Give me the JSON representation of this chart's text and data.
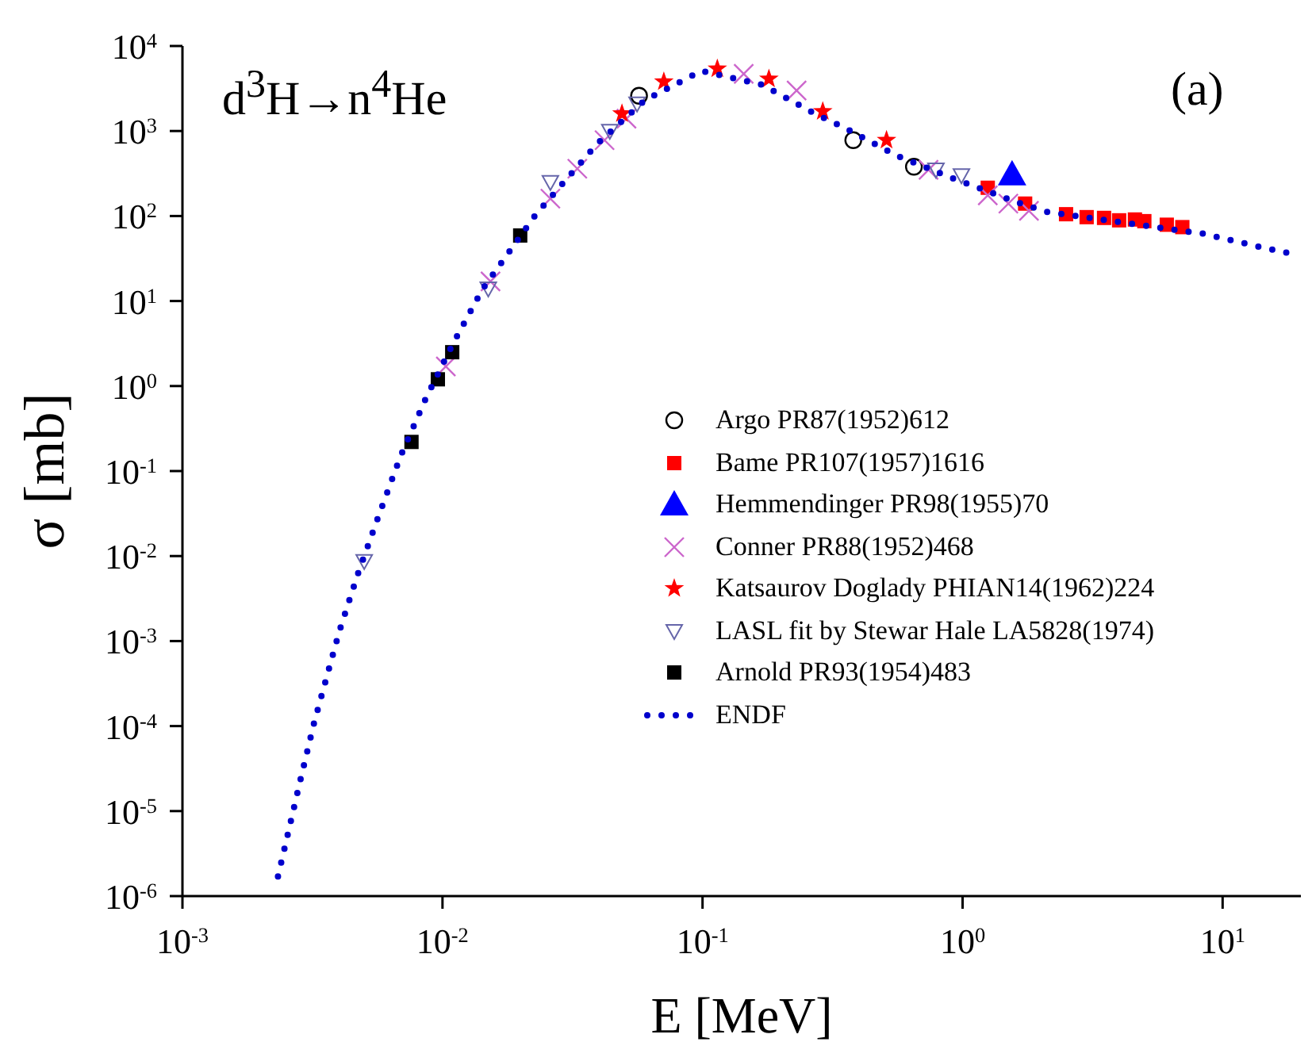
{
  "chart_data": {
    "type": "scatter",
    "xlabel": "E [MeV]",
    "ylabel": "σ [mb]",
    "log": "xy",
    "xlim": [
      0.001,
      20
    ],
    "ylim": [
      1e-06,
      10000
    ],
    "xticks": [
      {
        "value": 0.001,
        "label": "10$^{-3}$"
      },
      {
        "value": 0.01,
        "label": "10$^{-2}$"
      },
      {
        "value": 0.1,
        "label": "10$^{-1}$"
      },
      {
        "value": 1,
        "label": "10$^{0}$"
      },
      {
        "value": 10,
        "label": "10$^{1}$"
      }
    ],
    "yticks": [
      {
        "value": 1e-06,
        "label": "10$^{-6}$"
      },
      {
        "value": 1e-05,
        "label": "10$^{-5}$"
      },
      {
        "value": 0.0001,
        "label": "10$^{-4}$"
      },
      {
        "value": 0.001,
        "label": "10$^{-3}$"
      },
      {
        "value": 0.01,
        "label": "10$^{-2}$"
      },
      {
        "value": 0.1,
        "label": "10$^{-1}$"
      },
      {
        "value": 1,
        "label": "10$^{0}$"
      },
      {
        "value": 10,
        "label": "10$^{1}$"
      },
      {
        "value": 100,
        "label": "10$^{2}$"
      },
      {
        "value": 1000,
        "label": "10$^{3}$"
      },
      {
        "value": 10000,
        "label": "10$^{4}$"
      }
    ],
    "annotations": [
      "d$^{3}$H→n$^{4}$He",
      "(a)"
    ],
    "legend": "bottom right",
    "grid": false,
    "series": [
      {
        "name": "Argo PR87(1952)612",
        "color": "#000000",
        "marker": "circle",
        "x": [
          0.057,
          0.38,
          0.65
        ],
        "values": [
          2600,
          780,
          380
        ]
      },
      {
        "name": "Bame PR107(1957)1616",
        "color": "#ff0000",
        "marker": "square",
        "x": [
          1.25,
          1.74,
          2.5,
          3.0,
          3.5,
          4.0,
          4.6,
          5.0,
          6.1,
          7.0
        ],
        "values": [
          215,
          140,
          105,
          97,
          95,
          89,
          91,
          87,
          79,
          74
        ]
      },
      {
        "name": "Hemmendinger PR98(1955)70",
        "color": "#0000ff",
        "marker": "triangle",
        "x": [
          1.55
        ],
        "values": [
          310
        ]
      },
      {
        "name": "Conner PR88(1952)468",
        "color": "#cc66cc",
        "marker": "cross",
        "x": [
          0.0103,
          0.0153,
          0.026,
          0.033,
          0.042,
          0.051,
          0.144,
          0.23,
          0.74,
          1.25,
          1.5,
          1.8
        ],
        "values": [
          1.7,
          17,
          160,
          360,
          780,
          1400,
          4700,
          3000,
          350,
          175,
          140,
          115
        ]
      },
      {
        "name": "Katsaurov Doglady PHIAN14(1962)224",
        "color": "#ff0000",
        "marker": "star",
        "x": [
          0.049,
          0.071,
          0.114,
          0.18,
          0.29,
          0.51
        ],
        "values": [
          1600,
          3800,
          5400,
          4100,
          1700,
          780
        ]
      },
      {
        "name": "LASL fit by Stewar Hale LA5828(1974)",
        "color": "#6666aa",
        "marker": "triangle-down",
        "x": [
          0.005,
          0.015,
          0.026,
          0.044,
          0.056,
          0.79,
          0.99
        ],
        "values": [
          0.0087,
          14,
          250,
          1000,
          2100,
          350,
          300
        ]
      },
      {
        "name": "Arnold PR93(1954)483",
        "color": "#000000",
        "marker": "square",
        "x": [
          0.0076,
          0.0096,
          0.0109,
          0.0199
        ],
        "values": [
          0.22,
          1.2,
          2.5,
          59
        ]
      },
      {
        "name": "ENDF",
        "type": "line",
        "color": "#0000cc",
        "marker": "none",
        "line_style": "dotted",
        "x": [
          0.00233,
          0.00282,
          0.00321,
          0.00401,
          0.00473,
          0.00571,
          0.0069,
          0.0086,
          0.011,
          0.0143,
          0.0229,
          0.0394,
          0.06,
          0.099,
          0.17,
          0.27,
          0.35,
          0.56,
          0.94,
          1.62,
          2.1,
          8.4,
          14.5,
          19.2
        ],
        "values": [
          1.7e-06,
          2.1e-05,
          0.00011,
          0.0013,
          0.0062,
          0.031,
          0.15,
          0.7,
          3.2,
          14,
          105,
          710,
          2300,
          5100,
          3500,
          1600,
          1100,
          510,
          270,
          145,
          112,
          62,
          42,
          35
        ]
      }
    ]
  }
}
